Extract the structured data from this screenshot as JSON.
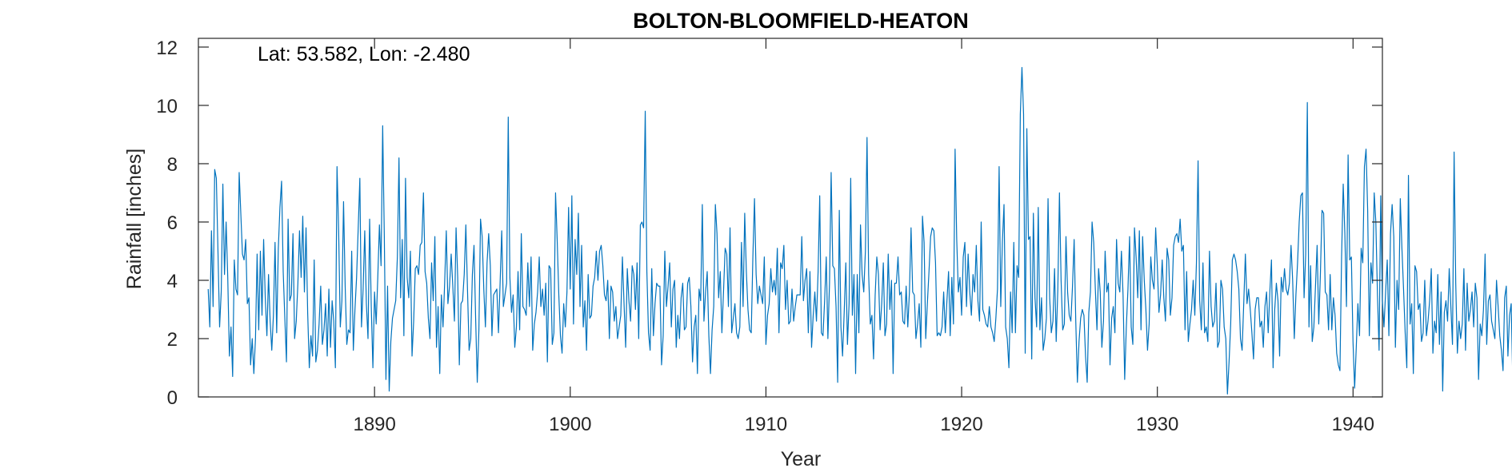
{
  "chart_data": {
    "type": "line",
    "title": "BOLTON-BLOOMFIELD-HEATON",
    "xlabel": "Year",
    "ylabel": "Rainfall [inches]",
    "annotation": "Lat: 53.582, Lon: -2.480",
    "xlim": [
      1881,
      1941.5
    ],
    "ylim": [
      0,
      12.3
    ],
    "xticks": [
      1890,
      1900,
      1910,
      1920,
      1930,
      1940
    ],
    "yticks": [
      0,
      2,
      4,
      6,
      8,
      10,
      12
    ],
    "grid": false,
    "series": [
      {
        "color": "#0072BD",
        "x_start": 1881.5,
        "x_step": 0.08333,
        "values": [
          3.7,
          2.4,
          5.7,
          3.1,
          7.8,
          7.5,
          5.0,
          2.4,
          3.6,
          7.3,
          4.2,
          6.0,
          4.1,
          1.4,
          2.4,
          0.7,
          4.7,
          3.7,
          3.5,
          7.7,
          6.3,
          4.9,
          4.7,
          5.4,
          3.2,
          3.4,
          1.1,
          2.0,
          0.8,
          2.0,
          4.9,
          2.3,
          5.0,
          2.8,
          5.4,
          3.4,
          2.1,
          4.2,
          2.6,
          1.6,
          2.8,
          5.3,
          2.2,
          5.1,
          6.5,
          7.4,
          4.3,
          2.7,
          1.2,
          6.1,
          3.3,
          3.5,
          5.6,
          2.0,
          2.6,
          3.9,
          5.7,
          4.1,
          6.2,
          3.6,
          5.8,
          2.9,
          1.0,
          2.1,
          1.4,
          4.7,
          1.2,
          1.6,
          2.5,
          3.8,
          1.8,
          2.3,
          3.2,
          1.4,
          3.7,
          1.7,
          3.3,
          2.6,
          1.0,
          7.9,
          5.7,
          2.4,
          3.3,
          6.7,
          3.8,
          1.8,
          2.3,
          2.2,
          5.0,
          1.6,
          3.0,
          4.1,
          5.8,
          7.5,
          2.4,
          3.7,
          5.7,
          3.2,
          2.0,
          6.1,
          3.1,
          1.0,
          3.6,
          2.5,
          4.1,
          5.9,
          4.5,
          9.3,
          5.5,
          0.6,
          3.8,
          0.2,
          1.9,
          2.7,
          3.0,
          3.3,
          4.8,
          8.2,
          3.4,
          5.4,
          2.1,
          7.5,
          4.1,
          3.4,
          5.0,
          1.4,
          2.6,
          4.4,
          4.5,
          4.2,
          5.2,
          5.3,
          7.0,
          4.3,
          3.9,
          2.7,
          2.0,
          4.6,
          3.3,
          5.5,
          1.7,
          3.1,
          0.8,
          3.5,
          2.4,
          3.9,
          5.7,
          3.2,
          3.8,
          4.9,
          3.8,
          2.6,
          5.8,
          4.1,
          1.1,
          3.2,
          3.3,
          4.2,
          5.9,
          3.7,
          1.6,
          2.0,
          4.2,
          5.2,
          2.7,
          0.5,
          2.3,
          6.1,
          5.5,
          3.7,
          2.4,
          4.6,
          5.6,
          4.5,
          2.1,
          3.5,
          3.6,
          3.7,
          2.2,
          3.9,
          5.7,
          3.1,
          3.5,
          3.9,
          9.6,
          4.1,
          2.9,
          3.5,
          1.7,
          2.4,
          4.3,
          2.3,
          5.6,
          3.1,
          3.0,
          2.8,
          4.6,
          3.1,
          4.8,
          1.6,
          2.5,
          2.9,
          3.6,
          4.8,
          3.1,
          3.7,
          2.8,
          3.9,
          1.2,
          4.5,
          4.4,
          1.8,
          2.2,
          7.0,
          5.4,
          3.5,
          2.1,
          1.5,
          3.2,
          2.4,
          3.6,
          6.5,
          3.7,
          6.9,
          2.5,
          5.4,
          4.2,
          6.3,
          3.1,
          5.2,
          2.4,
          3.3,
          1.6,
          4.2,
          2.7,
          2.8,
          3.8,
          4.1,
          5.0,
          4.0,
          5.0,
          5.2,
          4.5,
          3.5,
          3.3,
          4.0,
          2.0,
          3.8,
          3.6,
          2.6,
          3.1,
          2.0,
          2.4,
          2.8,
          4.8,
          3.2,
          1.7,
          4.4,
          3.3,
          2.6,
          4.5,
          4.2,
          3.0,
          4.6,
          2.0,
          5.9,
          6.0,
          5.8,
          9.8,
          4.3,
          2.2,
          1.6,
          4.4,
          2.1,
          3.2,
          3.9,
          3.8,
          3.8,
          1.1,
          2.1,
          5.0,
          3.1,
          3.8,
          4.6,
          2.4,
          3.7,
          4.0,
          1.7,
          2.8,
          2.0,
          3.4,
          3.9,
          2.3,
          2.4,
          3.9,
          4.1,
          3.1,
          1.2,
          2.4,
          2.8,
          0.8,
          3.7,
          3.3,
          6.6,
          2.6,
          3.6,
          4.3,
          2.1,
          0.8,
          2.3,
          3.1,
          6.6,
          5.6,
          3.4,
          4.3,
          2.2,
          3.6,
          5.1,
          4.9,
          3.1,
          5.8,
          2.2,
          2.7,
          3.2,
          2.2,
          2.0,
          2.4,
          5.3,
          3.1,
          6.3,
          4.3,
          3.0,
          2.3,
          2.2,
          4.8,
          6.8,
          4.2,
          3.2,
          3.8,
          3.5,
          3.2,
          4.8,
          1.8,
          2.8,
          3.2,
          4.4,
          3.6,
          4.0,
          3.5,
          5.1,
          2.2,
          4.6,
          4.4,
          5.2,
          3.0,
          4.0,
          2.5,
          2.6,
          3.7,
          2.6,
          3.1,
          3.5,
          3.5,
          3.5,
          5.5,
          3.3,
          4.0,
          4.4,
          2.2,
          4.3,
          1.7,
          2.8,
          3.6,
          2.6,
          4.3,
          6.9,
          2.2,
          2.1,
          3.3,
          4.8,
          2.0,
          3.9,
          7.7,
          4.5,
          4.4,
          3.1,
          0.5,
          6.4,
          2.4,
          1.4,
          2.9,
          4.6,
          1.8,
          3.2,
          7.5,
          2.8,
          4.2,
          0.8,
          4.2,
          2.2,
          5.9,
          4.2,
          3.6,
          5.0,
          8.9,
          4.2,
          2.5,
          2.8,
          1.3,
          3.5,
          4.8,
          4.2,
          2.3,
          3.2,
          4.6,
          2.1,
          2.5,
          4.9,
          3.0,
          4.0,
          0.8,
          3.9,
          3.9,
          4.8,
          3.5,
          3.6,
          2.6,
          2.5,
          3.8,
          2.4,
          3.6,
          5.8,
          3.6,
          3.5,
          2.0,
          2.5,
          3.2,
          1.7,
          6.2,
          5.3,
          2.0,
          3.2,
          4.3,
          5.5,
          5.8,
          5.7,
          4.6,
          2.1,
          2.2,
          2.1,
          2.4,
          3.6,
          2.2,
          3.3,
          4.3,
          2.1,
          4.1,
          2.5,
          8.5,
          5.4,
          3.6,
          4.1,
          2.8,
          4.8,
          5.3,
          3.1,
          4.9,
          3.6,
          2.8,
          4.2,
          3.6,
          5.2,
          3.3,
          2.6,
          6.0,
          3.0,
          2.8,
          2.5,
          2.4,
          3.1,
          2.4,
          2.2,
          1.9,
          2.7,
          3.7,
          7.9,
          3.1,
          5.3,
          6.6,
          2.4,
          2.0,
          1.0,
          3.6,
          2.2,
          5.3,
          2.2,
          4.5,
          4.1,
          9.7,
          11.3,
          9.7,
          1.5,
          9.2,
          5.4,
          5.5,
          1.3,
          6.3,
          3.4,
          2.4,
          6.5,
          2.3,
          3.4,
          1.6,
          2.0,
          2.7,
          6.8,
          3.4,
          2.2,
          2.6,
          4.4,
          1.9,
          3.7,
          7.0,
          4.0,
          2.3,
          2.5,
          5.5,
          3.6,
          2.8,
          2.6,
          3.8,
          5.4,
          2.6,
          0.5,
          1.9,
          2.7,
          3.0,
          2.8,
          1.4,
          0.5,
          2.9,
          3.6,
          6.0,
          5.3,
          3.7,
          2.3,
          4.4,
          3.6,
          1.7,
          2.6,
          5.0,
          3.6,
          3.9,
          1.1,
          2.7,
          3.1,
          2.2,
          5.4,
          3.9,
          3.6,
          5.0,
          3.5,
          0.6,
          2.4,
          3.7,
          5.5,
          2.4,
          1.8,
          5.8,
          4.8,
          3.4,
          5.7,
          2.3,
          5.5,
          4.0,
          3.0,
          1.6,
          2.5,
          4.8,
          4.0,
          3.7,
          5.8,
          4.5,
          2.9,
          3.5,
          4.7,
          3.4,
          2.6,
          5.1,
          4.7,
          2.8,
          3.4,
          5.2,
          5.5,
          5.6,
          5.3,
          6.1,
          5.0,
          5.2,
          2.3,
          4.3,
          1.9,
          2.5,
          3.0,
          4.0,
          2.8,
          4.6,
          8.1,
          3.3,
          2.3,
          4.6,
          2.2,
          2.4,
          1.9,
          5.0,
          3.1,
          2.4,
          2.6,
          3.9,
          1.7,
          1.9,
          4.0,
          3.7,
          2.4,
          2.0,
          0.1,
          1.2,
          2.5,
          4.7,
          4.9,
          4.7,
          4.3,
          3.7,
          2.0,
          1.6,
          3.2,
          4.9,
          3.2,
          3.7,
          3.0,
          2.2,
          1.3,
          3.0,
          3.4,
          3.4,
          2.4,
          2.6,
          1.7,
          3.1,
          3.6,
          2.2,
          3.6,
          4.7,
          1.0,
          3.0,
          3.9,
          3.3,
          1.4,
          4.1,
          3.6,
          4.4,
          3.7,
          3.5,
          3.9,
          5.2,
          4.0,
          2.0,
          3.5,
          4.6,
          6.0,
          6.9,
          7.0,
          3.4,
          4.9,
          10.1,
          2.4,
          4.5,
          1.9,
          2.4,
          3.8,
          5.2,
          2.5,
          4.2,
          6.4,
          6.3,
          3.6,
          3.5,
          2.3,
          4.2,
          2.3,
          3.4,
          2.8,
          1.5,
          1.1,
          0.9,
          4.8,
          7.3,
          5.6,
          3.1,
          8.3,
          4.7,
          4.8,
          1.9,
          0.3,
          1.7,
          3.2,
          2.1,
          5.1,
          4.6,
          7.9,
          8.5,
          6.4,
          2.1,
          4.6,
          3.9,
          7.0,
          6.0,
          3.5,
          1.6,
          6.9,
          3.3,
          2.4,
          3.6,
          4.7,
          2.1,
          5.6,
          6.6,
          5.5,
          1.7,
          4.0,
          3.0,
          6.8,
          5.1,
          3.7,
          2.2,
          1.0,
          7.6,
          2.5,
          3.2,
          0.8,
          4.5,
          4.3,
          3.0,
          3.2,
          1.9,
          2.2,
          4.0,
          2.1,
          2.6,
          3.3,
          4.4,
          1.5,
          2.6,
          2.2,
          4.2,
          1.8,
          3.6,
          0.2,
          2.9,
          3.3,
          2.6,
          4.4,
          3.1,
          1.8,
          8.4,
          3.9,
          1.5,
          2.6,
          2.0,
          2.5,
          4.4,
          1.6,
          3.9,
          2.6,
          3.0,
          3.6,
          2.4,
          3.9,
          3.4,
          0.6,
          2.5,
          2.1,
          3.0,
          4.9,
          1.8,
          3.3,
          3.5,
          2.6,
          2.3,
          2.0,
          4.0,
          3.1,
          2.1,
          1.6,
          0.9,
          3.4,
          3.8,
          1.4,
          2.8,
          3.2,
          0.5,
          2.7,
          3.3,
          3.1,
          2.3,
          4.8,
          3.7,
          5.2,
          2.2,
          3.3,
          4.9,
          4.3,
          3.9,
          5.2,
          2.5,
          2.1,
          3.8,
          2.7,
          2.3,
          3.2,
          2.8,
          5.1,
          2.3,
          4.6,
          3.3,
          6.2,
          6.6,
          9.3,
          6.4,
          3.6,
          4.7,
          4.4,
          2.6,
          1.3,
          1.0,
          3.7,
          4.4,
          5.5,
          2.5,
          5.3,
          4.7,
          2.0,
          5.9,
          5.2,
          5.9,
          4.2,
          2.7,
          3.4,
          1.7,
          6.6,
          4.9,
          2.0,
          2.5,
          3.6,
          2.0,
          3.3,
          2.3,
          2.9,
          3.1,
          4.0,
          1.9,
          1.6,
          2.4,
          2.5,
          2.8,
          2.0,
          2.3,
          0.6,
          5.1,
          4.6,
          4.8,
          4.4,
          3.4,
          2.7,
          5.1,
          5.3,
          10.4,
          6.1,
          5.3,
          6.2,
          6.3,
          5.2,
          3.2,
          1.4,
          4.3,
          2.7,
          6.4,
          2.0,
          1.7,
          5.5,
          1.4,
          1.7,
          3.0,
          6.5,
          4.8,
          4.0,
          1.7,
          3.6,
          3.3,
          3.0,
          3.1,
          3.2,
          1.5,
          1.3,
          3.8,
          6.9,
          2.5,
          4.3,
          4.4,
          8.0,
          7.2,
          5.3
        ]
      }
    ]
  }
}
